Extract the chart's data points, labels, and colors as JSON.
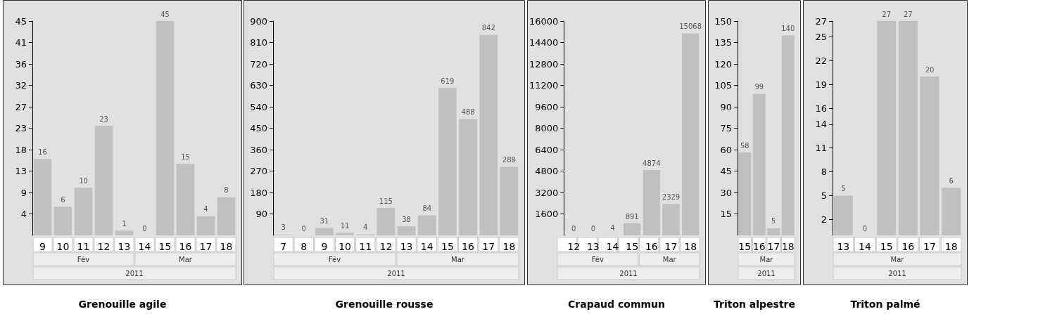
{
  "chart_data": [
    {
      "type": "bar",
      "title": "Grenouille agile",
      "categories": [
        "9",
        "10",
        "11",
        "12",
        "13",
        "14",
        "15",
        "16",
        "17",
        "18"
      ],
      "values": [
        16,
        6,
        10,
        23,
        1,
        0,
        45,
        15,
        4,
        8
      ],
      "color": "#c0c0c0",
      "data_labels": true,
      "grid": false,
      "ylim": [
        0,
        45
      ],
      "yticks": [
        {
          "value": 4.5,
          "label": "4"
        },
        9,
        {
          "value": 13.5,
          "label": "13"
        },
        18,
        {
          "value": 22.5,
          "label": "23"
        },
        27,
        {
          "value": 31.5,
          "label": "32"
        },
        36,
        {
          "value": 40.5,
          "label": "41"
        },
        45
      ],
      "annotations": [
        "Fév",
        "Mar",
        "2011"
      ]
    },
    {
      "type": "bar",
      "title": "Grenouille rousse",
      "categories": [
        "7",
        "8",
        "9",
        "10",
        "11",
        "12",
        "13",
        "14",
        "15",
        "16",
        "17",
        "18"
      ],
      "values": [
        3,
        0,
        31,
        11,
        4,
        115,
        38,
        84,
        619,
        488,
        842,
        288
      ],
      "color": "#c0c0c0",
      "data_labels": true,
      "grid": false,
      "ylim": [
        0,
        900
      ],
      "yticks": [
        90,
        180,
        270,
        360,
        450,
        540,
        630,
        720,
        810,
        900
      ],
      "annotations": [
        "Fév",
        "Mar",
        "2011"
      ]
    },
    {
      "type": "bar",
      "title": "Crapaud commun",
      "categories": [
        "12",
        "13",
        "14",
        "15",
        "16",
        "17",
        "18"
      ],
      "values": [
        0,
        0,
        4,
        891,
        4874,
        2329,
        15068
      ],
      "color": "#c0c0c0",
      "data_labels": true,
      "grid": false,
      "ylim": [
        0,
        16000
      ],
      "yticks": [
        1600,
        3200,
        4800,
        6400,
        8000,
        9600,
        11200,
        12800,
        14400,
        16000
      ],
      "annotations": [
        "Fév",
        "Mar",
        "2011"
      ]
    },
    {
      "type": "bar",
      "title": "Triton alpestre",
      "categories": [
        "15",
        "16",
        "17",
        "18"
      ],
      "values": [
        58,
        99,
        5,
        140
      ],
      "color": "#c0c0c0",
      "data_labels": true,
      "grid": false,
      "ylim": [
        0,
        150
      ],
      "yticks": [
        15,
        30,
        45,
        60,
        75,
        90,
        105,
        120,
        135,
        150
      ],
      "annotations": [
        "Mar",
        "2011"
      ]
    },
    {
      "type": "bar",
      "title": "Triton palmé",
      "categories": [
        "13",
        "14",
        "15",
        "16",
        "17",
        "18"
      ],
      "values": [
        5,
        0,
        27,
        27,
        20,
        6
      ],
      "color": "#c0c0c0",
      "data_labels": true,
      "grid": false,
      "ylim": [
        0,
        27
      ],
      "yticks": [
        2,
        5,
        8,
        11,
        14,
        16,
        19,
        22,
        25,
        27
      ],
      "annotations": [
        "Mar",
        "2011"
      ]
    }
  ]
}
